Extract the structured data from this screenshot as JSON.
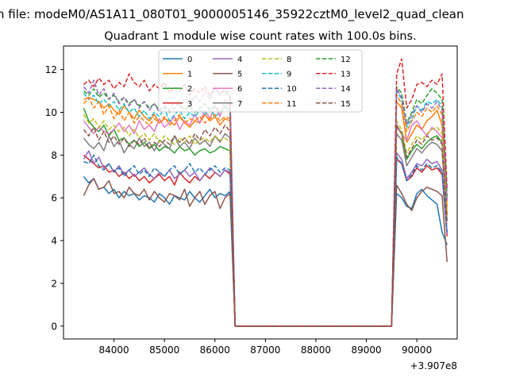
{
  "figure": {
    "suptitle": "n file: modeM0/AS1A11_080T01_9000005146_35922cztM0_level2_quad_clean",
    "title": "Quadrant 1 module wise count rates with 100.0s bins.",
    "offset_label": "+3.907e8"
  },
  "chart_data": {
    "type": "line",
    "title": "Quadrant 1 module wise count rates with 100.0s bins.",
    "xlabel": "",
    "ylabel": "",
    "x_offset": 390700000,
    "xlim": [
      83000,
      90800
    ],
    "ylim": [
      -0.6,
      13.1
    ],
    "xticks": [
      84000,
      85000,
      86000,
      87000,
      88000,
      89000,
      90000
    ],
    "xtick_labels": [
      "84000",
      "85000",
      "86000",
      "87000",
      "88000",
      "89000",
      "90000"
    ],
    "yticks": [
      0,
      2,
      4,
      6,
      8,
      10,
      12
    ],
    "ytick_labels": [
      "0",
      "2",
      "4",
      "6",
      "8",
      "10",
      "12"
    ],
    "grid": false,
    "legend": {
      "placement": "upper-center",
      "columns": 4
    },
    "gap": {
      "x_start": 86300,
      "x_zero_start": 86400,
      "x_zero_end": 89500,
      "x_resume": 89600
    },
    "x_segment1": [
      83400,
      86300
    ],
    "x_segment2": [
      89600,
      90600
    ],
    "series": [
      {
        "name": "0",
        "color": "#1f77b4",
        "dash": "solid",
        "start_x": 83400,
        "values1": [
          7.0,
          6.7,
          6.9,
          6.4,
          6.5,
          6.2,
          6.4,
          6.0,
          6.3,
          6.1,
          6.2,
          5.9,
          6.1,
          6.0,
          5.8,
          6.2,
          6.0,
          5.7,
          6.1,
          6.0,
          5.9,
          6.3,
          6.0,
          5.8,
          6.1,
          6.4,
          6.0,
          6.2,
          6.1,
          6.3
        ],
        "values2": [
          6.2,
          6.0,
          5.6,
          5.5,
          6.2,
          6.4,
          6.1,
          5.9,
          5.7,
          4.4,
          3.8
        ]
      },
      {
        "name": "1",
        "color": "#ff7f0e",
        "dash": "solid",
        "start_x": 83400,
        "values1": [
          10.6,
          10.7,
          10.6,
          10.5,
          10.2,
          10.4,
          10.1,
          9.9,
          10.3,
          10.0,
          9.7,
          10.1,
          9.8,
          9.6,
          9.9,
          9.5,
          9.7,
          9.6,
          9.4,
          9.8,
          9.5,
          9.3,
          9.6,
          9.5,
          9.9,
          9.6,
          9.8,
          9.4,
          9.7,
          9.6
        ],
        "values2": [
          10.5,
          10.2,
          8.6,
          9.0,
          9.4,
          9.2,
          9.6,
          9.8,
          10.1,
          9.4,
          5.6
        ]
      },
      {
        "name": "2",
        "color": "#2ca02c",
        "dash": "solid",
        "start_x": 83400,
        "values1": [
          10.2,
          9.6,
          9.3,
          9.1,
          9.4,
          8.9,
          9.2,
          8.7,
          8.8,
          8.5,
          8.7,
          8.4,
          8.6,
          8.3,
          8.5,
          8.2,
          8.4,
          8.3,
          8.1,
          8.4,
          8.2,
          8.3,
          8.0,
          8.2,
          8.3,
          8.1,
          8.2,
          8.4,
          8.3,
          8.2
        ],
        "values2": [
          9.4,
          9.0,
          7.8,
          8.2,
          8.5,
          8.3,
          8.6,
          8.8,
          8.9,
          8.6,
          5.2
        ]
      },
      {
        "name": "3",
        "color": "#d62728",
        "dash": "solid",
        "start_x": 83400,
        "values1": [
          8.0,
          7.8,
          7.6,
          7.4,
          7.5,
          7.2,
          7.3,
          7.0,
          7.2,
          6.9,
          7.1,
          6.8,
          7.0,
          6.7,
          6.9,
          7.1,
          6.8,
          7.0,
          6.6,
          7.2,
          6.9,
          6.7,
          7.0,
          6.8,
          7.1,
          6.9,
          7.2,
          7.0,
          7.3,
          7.1
        ],
        "values2": [
          7.8,
          7.6,
          6.8,
          7.0,
          7.4,
          7.2,
          7.5,
          7.3,
          7.4,
          7.1,
          4.2
        ]
      },
      {
        "name": "4",
        "color": "#9467bd",
        "dash": "solid",
        "start_x": 83400,
        "values1": [
          7.8,
          8.2,
          7.6,
          7.9,
          7.4,
          7.6,
          7.2,
          7.5,
          7.1,
          7.3,
          7.0,
          7.2,
          7.4,
          7.1,
          6.9,
          7.2,
          7.0,
          7.3,
          6.9,
          7.1,
          7.3,
          7.0,
          7.2,
          6.8,
          7.1,
          7.4,
          7.2,
          7.0,
          7.3,
          7.2
        ],
        "values2": [
          8.1,
          7.8,
          6.9,
          7.2,
          7.6,
          7.5,
          7.8,
          7.6,
          7.7,
          7.3,
          4.3
        ]
      },
      {
        "name": "5",
        "color": "#8c564b",
        "dash": "solid",
        "start_x": 83400,
        "values1": [
          6.1,
          6.6,
          6.9,
          6.4,
          6.5,
          6.8,
          6.2,
          6.3,
          6.0,
          6.5,
          6.2,
          6.1,
          6.4,
          5.9,
          6.3,
          6.0,
          5.8,
          6.2,
          6.1,
          5.9,
          6.4,
          5.6,
          6.0,
          6.3,
          5.7,
          6.1,
          6.3,
          5.5,
          6.0,
          6.2
        ],
        "values2": [
          6.6,
          6.2,
          5.7,
          5.4,
          6.0,
          6.3,
          6.5,
          6.4,
          6.3,
          6.1,
          3.0
        ]
      },
      {
        "name": "6",
        "color": "#e377c2",
        "dash": "solid",
        "start_x": 83400,
        "values1": [
          9.6,
          9.3,
          9.0,
          9.3,
          9.1,
          9.0,
          9.2,
          9.5,
          9.1,
          9.4,
          9.0,
          9.6,
          9.2,
          9.4,
          9.1,
          9.7,
          9.3,
          9.5,
          9.8,
          9.2,
          9.6,
          9.4,
          9.9,
          9.5,
          10.1,
          9.7,
          10.3,
          9.8,
          10.6,
          10.2
        ],
        "values2": [
          9.3,
          9.0,
          8.7,
          9.4,
          9.6,
          9.2,
          8.9,
          9.3,
          9.1,
          8.8,
          5.3
        ]
      },
      {
        "name": "7",
        "color": "#7f7f7f",
        "dash": "solid",
        "start_x": 83400,
        "values1": [
          8.8,
          8.5,
          8.3,
          8.6,
          8.2,
          8.9,
          8.4,
          8.7,
          8.1,
          8.5,
          8.3,
          8.8,
          8.4,
          8.6,
          8.2,
          8.7,
          8.5,
          8.3,
          8.9,
          8.4,
          8.6,
          8.3,
          8.8,
          8.5,
          8.7,
          8.4,
          8.9,
          8.6,
          9.0,
          8.8
        ],
        "values2": [
          9.0,
          8.7,
          7.5,
          7.9,
          8.3,
          8.1,
          8.4,
          8.6,
          8.5,
          8.2,
          4.9
        ]
      },
      {
        "name": "8",
        "color": "#bcbd22",
        "dash": "dashed",
        "start_x": 83400,
        "values1": [
          9.9,
          9.5,
          9.7,
          9.3,
          9.6,
          9.2,
          9.4,
          9.1,
          9.3,
          8.9,
          9.2,
          8.8,
          9.0,
          8.7,
          9.0,
          8.6,
          8.9,
          8.7,
          8.5,
          8.8,
          8.6,
          8.9,
          8.5,
          8.7,
          8.8,
          8.6,
          8.9,
          8.7,
          8.8,
          8.6
        ],
        "values2": [
          9.6,
          9.2,
          8.1,
          8.5,
          8.9,
          8.7,
          9.0,
          9.2,
          9.3,
          9.0,
          5.4
        ]
      },
      {
        "name": "9",
        "color": "#17becf",
        "dash": "dashed",
        "start_x": 83400,
        "values1": [
          10.9,
          10.6,
          10.8,
          10.4,
          10.6,
          10.3,
          10.5,
          10.1,
          10.4,
          10.0,
          10.2,
          9.8,
          10.1,
          9.7,
          10.0,
          9.8,
          10.2,
          9.6,
          9.9,
          10.1,
          9.7,
          10.0,
          9.8,
          10.1,
          9.9,
          10.2,
          9.8,
          10.0,
          10.3,
          10.1
        ],
        "values2": [
          11.0,
          10.6,
          9.3,
          9.7,
          10.3,
          10.1,
          10.5,
          10.4,
          10.6,
          10.3,
          6.0
        ]
      },
      {
        "name": "10",
        "color": "#1f77b4",
        "dash": "dashed",
        "start_x": 83400,
        "values1": [
          7.7,
          7.6,
          8.0,
          7.5,
          7.3,
          7.6,
          7.2,
          7.4,
          7.0,
          7.3,
          7.5,
          7.1,
          7.3,
          7.0,
          7.4,
          7.2,
          7.0,
          7.3,
          7.5,
          7.1,
          7.3,
          7.6,
          7.2,
          7.4,
          7.1,
          7.3,
          7.5,
          7.2,
          7.4,
          7.3
        ],
        "values2": [
          7.9,
          7.6,
          6.8,
          7.1,
          7.5,
          7.3,
          7.6,
          7.4,
          7.5,
          7.2,
          4.4
        ]
      },
      {
        "name": "11",
        "color": "#ff7f0e",
        "dash": "dashed",
        "start_x": 83400,
        "values1": [
          10.4,
          10.7,
          10.2,
          10.5,
          9.9,
          10.3,
          9.7,
          10.1,
          9.6,
          10.0,
          9.5,
          9.8,
          9.6,
          9.4,
          9.7,
          9.5,
          9.8,
          9.4,
          9.6,
          9.9,
          9.5,
          9.7,
          9.6,
          9.8,
          9.5,
          9.7,
          9.9,
          9.6,
          9.8,
          9.7
        ],
        "values2": [
          10.8,
          10.4,
          9.1,
          9.6,
          10.0,
          9.8,
          10.2,
          10.0,
          10.3,
          9.9,
          5.1
        ]
      },
      {
        "name": "12",
        "color": "#2ca02c",
        "dash": "dashed",
        "start_x": 83400,
        "values1": [
          11.0,
          10.8,
          11.1,
          10.7,
          10.9,
          10.6,
          10.8,
          10.5,
          10.7,
          10.4,
          10.6,
          10.3,
          10.5,
          10.2,
          10.4,
          10.1,
          10.3,
          10.0,
          10.2,
          10.4,
          10.1,
          10.3,
          10.0,
          10.2,
          10.4,
          10.1,
          10.3,
          10.0,
          10.2,
          10.1
        ],
        "values2": [
          11.2,
          10.9,
          9.5,
          10.0,
          10.6,
          10.4,
          10.8,
          11.1,
          10.9,
          10.6,
          6.1
        ]
      },
      {
        "name": "13",
        "color": "#d62728",
        "dash": "dashed",
        "start_x": 83400,
        "values1": [
          11.3,
          11.5,
          11.2,
          11.6,
          11.3,
          11.5,
          11.1,
          11.4,
          11.2,
          11.8,
          11.4,
          11.2,
          11.5,
          11.0,
          11.3,
          11.1,
          11.4,
          10.9,
          11.2,
          11.0,
          11.3,
          10.8,
          11.1,
          10.9,
          11.2,
          10.8,
          11.1,
          10.9,
          11.0,
          10.7
        ],
        "values2": [
          11.8,
          12.5,
          10.2,
          10.6,
          11.3,
          11.4,
          11.2,
          11.5,
          11.3,
          11.8,
          6.4
        ]
      },
      {
        "name": "14",
        "color": "#9467bd",
        "dash": "dashed",
        "start_x": 83400,
        "values1": [
          11.2,
          10.9,
          11.5,
          10.8,
          11.1,
          10.6,
          10.9,
          10.4,
          10.7,
          10.3,
          10.6,
          10.2,
          10.5,
          10.1,
          10.4,
          10.0,
          10.3,
          10.1,
          10.5,
          10.2,
          10.6,
          10.3,
          10.8,
          10.5,
          11.0,
          10.6,
          11.2,
          10.8,
          11.1,
          10.9
        ],
        "values2": [
          11.1,
          10.7,
          9.4,
          9.9,
          10.3,
          10.0,
          10.4,
          10.2,
          10.5,
          10.1,
          5.8
        ]
      },
      {
        "name": "15",
        "color": "#8c564b",
        "dash": "dashed",
        "start_x": 83400,
        "values1": [
          9.2,
          8.9,
          9.3,
          8.7,
          9.1,
          8.6,
          8.9,
          8.5,
          8.8,
          8.4,
          8.7,
          8.5,
          8.8,
          8.3,
          8.6,
          8.4,
          8.7,
          8.5,
          8.9,
          8.6,
          8.8,
          8.5,
          9.0,
          8.7,
          9.2,
          8.9,
          9.3,
          9.0,
          9.4,
          9.1
        ],
        "values2": [
          9.4,
          9.0,
          7.9,
          8.3,
          8.7,
          8.5,
          8.9,
          8.7,
          8.8,
          8.5,
          4.8
        ]
      }
    ]
  }
}
